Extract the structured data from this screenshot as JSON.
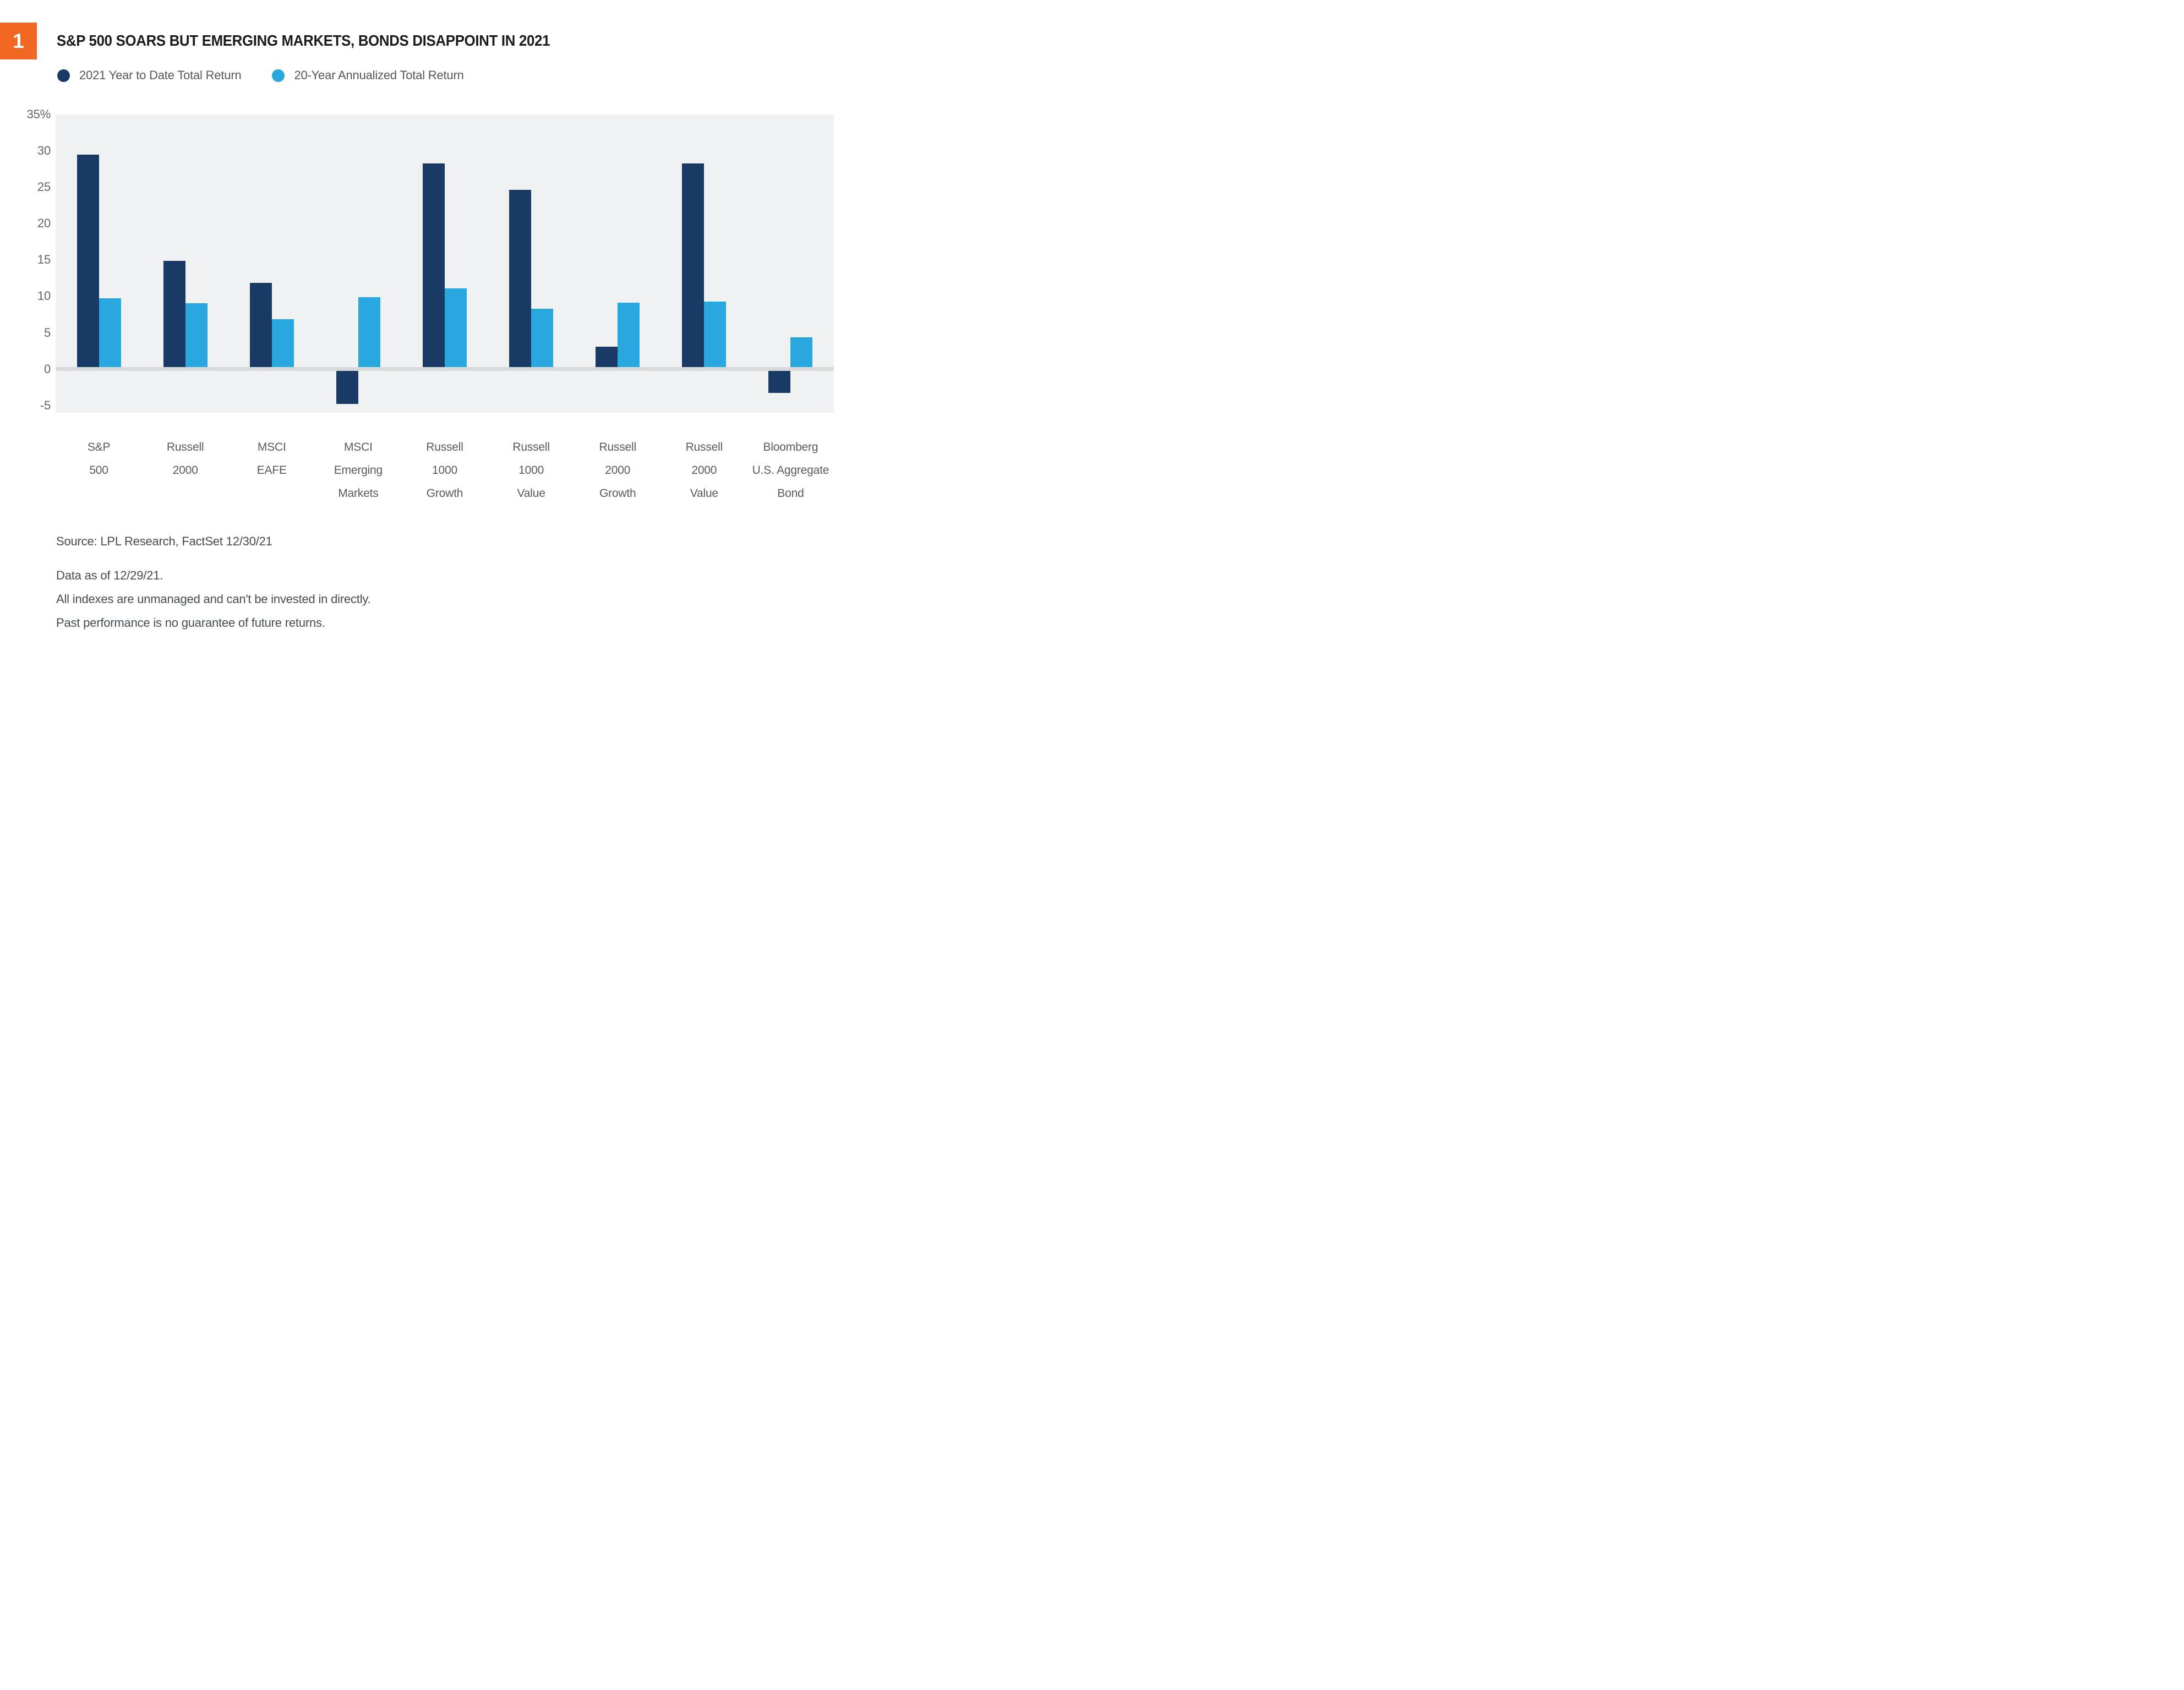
{
  "figure": {
    "badge": "1",
    "title": "S&P 500 SOARS BUT EMERGING MARKETS, BONDS DISAPPOINT IN 2021"
  },
  "legend": [
    {
      "label": "2021 Year to Date Total Return",
      "color": "#183a64"
    },
    {
      "label": "20-Year Annualized Total Return",
      "color": "#29a7df"
    }
  ],
  "chart_data": {
    "type": "bar",
    "title": "S&P 500 SOARS BUT EMERGING MARKETS, BONDS DISAPPOINT IN 2021",
    "categories": [
      "S&P 500",
      "Russell 2000",
      "MSCI EAFE",
      "MSCI Emerging Markets",
      "Russell 1000 Growth",
      "Russell 1000 Value",
      "Russell 2000 Growth",
      "Russell 2000 Value",
      "Bloomberg U.S. Aggregate Bond"
    ],
    "category_lines": [
      [
        "S&P",
        "500"
      ],
      [
        "Russell",
        "2000"
      ],
      [
        "MSCI",
        "EAFE"
      ],
      [
        "MSCI",
        "Emerging",
        "Markets"
      ],
      [
        "Russell",
        "1000",
        "Growth"
      ],
      [
        "Russell",
        "1000",
        "Value"
      ],
      [
        "Russell",
        "2000",
        "Growth"
      ],
      [
        "Russell",
        "2000",
        "Value"
      ],
      [
        "Bloomberg",
        "U.S. Aggregate",
        "Bond"
      ]
    ],
    "series": [
      {
        "name": "2021 Year to Date Total Return",
        "color": "#183a64",
        "values": [
          29.2,
          14.6,
          11.6,
          -4.5,
          28.0,
          24.4,
          2.8,
          28.0,
          -3.0
        ]
      },
      {
        "name": "20-Year Annualized Total Return",
        "color": "#29a7df",
        "values": [
          9.5,
          8.8,
          6.6,
          9.6,
          10.8,
          8.0,
          8.9,
          9.0,
          4.1
        ]
      }
    ],
    "xlabel": "",
    "ylabel": "",
    "y_axis": {
      "min": -6,
      "max": 35,
      "unit": "%",
      "ticks": [
        {
          "value": 35,
          "label": "35%"
        },
        {
          "value": 30,
          "label": "30"
        },
        {
          "value": 25,
          "label": "25"
        },
        {
          "value": 20,
          "label": "20"
        },
        {
          "value": 15,
          "label": "15"
        },
        {
          "value": 10,
          "label": "10"
        },
        {
          "value": 5,
          "label": "5"
        },
        {
          "value": 0,
          "label": "0"
        },
        {
          "value": -5,
          "label": "-5"
        }
      ]
    },
    "grid": "zero-line-only",
    "legend_position": "top-left"
  },
  "footer": {
    "source": "Source: LPL Research, FactSet 12/30/21",
    "notes": [
      "Data as of 12/29/21.",
      "All indexes are unmanaged and can't be invested in directly.",
      "Past performance is no guarantee of future returns."
    ]
  },
  "colors": {
    "badge_background": "#f26822",
    "badge_text": "#ffffff",
    "title_text": "#1a1a1a",
    "plot_background": "#f0f1f3",
    "zero_line": "#d8d9da",
    "axis_text": "#646567",
    "category_text": "#595b5d",
    "footer_text": "#474c51",
    "series_dark": "#183a64",
    "series_light": "#29a7df"
  }
}
